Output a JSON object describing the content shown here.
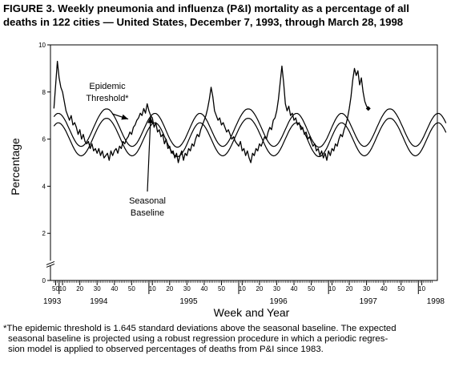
{
  "figure": {
    "title_lines": [
      "FIGURE 3. Weekly pneumonia and influenza (P&I) mortality as a percentage of all",
      "deaths in 122 cities — United States, December 7, 1993, through March 28, 1998"
    ],
    "footnote_lines": [
      "*The epidemic threshold is 1.645 standard deviations above the seasonal baseline. The expected",
      "seasonal baseline is projected using a robust regression procedure in which a periodic regres-",
      "sion model is applied to observed percentages of deaths from P&I since 1983."
    ]
  },
  "chart_data": {
    "type": "line",
    "title": "Weekly pneumonia and influenza (P&I) mortality as a percentage of all deaths in 122 cities — United States, December 7, 1993, through March 28, 1998",
    "xlabel": "Week and Year",
    "ylabel": "Percentage",
    "ylim": [
      0,
      10
    ],
    "y_ticks": [
      0,
      2,
      4,
      6,
      8,
      10
    ],
    "y_axis_break": true,
    "grid": false,
    "legend": "none",
    "x_unit": "week index from first plotted week (week 49, 1993)",
    "week_ticks": [
      {
        "x": 1,
        "label": "50"
      },
      {
        "x": 5,
        "label": "10"
      },
      {
        "x": 15,
        "label": "20"
      },
      {
        "x": 25,
        "label": "30"
      },
      {
        "x": 35,
        "label": "40"
      },
      {
        "x": 45,
        "label": "50"
      },
      {
        "x": 57,
        "label": "10"
      },
      {
        "x": 67,
        "label": "20"
      },
      {
        "x": 77,
        "label": "30"
      },
      {
        "x": 87,
        "label": "40"
      },
      {
        "x": 97,
        "label": "50"
      },
      {
        "x": 109,
        "label": "10"
      },
      {
        "x": 119,
        "label": "20"
      },
      {
        "x": 129,
        "label": "30"
      },
      {
        "x": 139,
        "label": "40"
      },
      {
        "x": 149,
        "label": "50"
      },
      {
        "x": 161,
        "label": "10"
      },
      {
        "x": 171,
        "label": "20"
      },
      {
        "x": 181,
        "label": "30"
      },
      {
        "x": 191,
        "label": "40"
      },
      {
        "x": 201,
        "label": "50"
      },
      {
        "x": 213,
        "label": "10"
      }
    ],
    "year_labels": [
      {
        "x": -1,
        "label": "1993"
      },
      {
        "x": 26,
        "label": "1994"
      },
      {
        "x": 78,
        "label": "1995"
      },
      {
        "x": 130,
        "label": "1996"
      },
      {
        "x": 182,
        "label": "1997"
      },
      {
        "x": 221,
        "label": "1998"
      }
    ],
    "year_boundaries": [
      3,
      55,
      107,
      159,
      211
    ],
    "annotations": [
      {
        "text_lines": [
          "Epidemic",
          "Threshold*"
        ],
        "arrow_to": {
          "x": 43,
          "y": 6.85
        }
      },
      {
        "text_lines": [
          "Seasonal",
          "Baseline"
        ],
        "arrow_to": {
          "x": 56,
          "y": 6.95
        }
      }
    ],
    "series": [
      {
        "name": "Observed percentage of deaths from P&I",
        "x_start": 0,
        "values": [
          7.3,
          8.3,
          9.3,
          8.6,
          8.2,
          8.0,
          7.6,
          7.2,
          7.0,
          6.8,
          7.0,
          6.6,
          6.7,
          6.5,
          6.2,
          6.4,
          6.0,
          6.2,
          5.9,
          5.8,
          5.9,
          5.6,
          5.8,
          5.5,
          5.6,
          5.4,
          5.6,
          5.3,
          5.5,
          5.2,
          5.3,
          5.4,
          5.1,
          5.5,
          5.3,
          5.5,
          5.6,
          5.4,
          5.7,
          5.6,
          5.9,
          5.8,
          6.0,
          6.1,
          6.3,
          6.2,
          6.5,
          6.6,
          6.8,
          6.9,
          7.1,
          7.0,
          7.3,
          7.1,
          7.5,
          7.2,
          7.0,
          6.9,
          6.5,
          6.7,
          6.3,
          6.4,
          6.1,
          6.2,
          5.8,
          6.0,
          5.6,
          5.7,
          5.4,
          5.5,
          5.2,
          5.4,
          5.0,
          5.3,
          5.5,
          5.1,
          5.4,
          5.3,
          5.6,
          5.5,
          5.8,
          5.7,
          6.0,
          6.2,
          6.1,
          6.4,
          6.6,
          6.8,
          7.0,
          7.3,
          7.7,
          8.2,
          7.8,
          7.2,
          7.0,
          6.8,
          6.9,
          6.6,
          6.7,
          6.5,
          6.3,
          6.4,
          6.2,
          6.0,
          6.1,
          5.9,
          5.8,
          5.7,
          5.9,
          5.5,
          5.6,
          5.3,
          5.5,
          5.2,
          5.0,
          5.4,
          5.3,
          5.6,
          5.5,
          5.8,
          5.7,
          5.9,
          6.1,
          6.0,
          6.3,
          6.5,
          6.4,
          6.8,
          6.9,
          7.2,
          7.7,
          8.4,
          9.1,
          8.4,
          7.5,
          7.2,
          7.4,
          7.0,
          7.1,
          6.8,
          6.9,
          6.6,
          6.7,
          6.4,
          6.5,
          6.2,
          6.3,
          6.0,
          6.1,
          5.9,
          5.7,
          5.8,
          5.5,
          5.6,
          5.3,
          5.5,
          5.2,
          5.4,
          5.1,
          5.5,
          5.3,
          5.6,
          5.5,
          5.8,
          5.7,
          6.0,
          6.2,
          6.1,
          6.4,
          6.6,
          6.9,
          7.3,
          7.8,
          8.5,
          9.0,
          8.7,
          8.9,
          8.3,
          8.6,
          8.0,
          7.6,
          7.4,
          7.3
        ]
      },
      {
        "name": "Epidemic threshold",
        "x_start": 0,
        "values": [
          6.95,
          7.04,
          7.09,
          7.09,
          7.05,
          6.97,
          6.86,
          6.73,
          6.57,
          6.41,
          6.25,
          6.09,
          5.95,
          5.83,
          5.75,
          5.7,
          5.69,
          5.72,
          5.79,
          5.89,
          6.02,
          6.17,
          6.33,
          6.5,
          6.66,
          6.82,
          6.96,
          7.08,
          7.18,
          7.25,
          7.28,
          7.28,
          7.25,
          7.18,
          7.08,
          6.96,
          6.82,
          6.66,
          6.5,
          6.33,
          6.17,
          6.02,
          5.89,
          5.79,
          5.72,
          5.69,
          5.7,
          5.75,
          5.83,
          5.95,
          6.09,
          6.25,
          6.41,
          6.57,
          6.73,
          6.86,
          6.97,
          7.05,
          7.09,
          7.09,
          7.04,
          6.95,
          6.83,
          6.68,
          6.52,
          6.35,
          6.18,
          6.02,
          5.89,
          5.78,
          5.7,
          5.66,
          5.66,
          5.7,
          5.78,
          5.89,
          6.02,
          6.18,
          6.35,
          6.52,
          6.68,
          6.83,
          6.95,
          7.04,
          7.09,
          7.09,
          7.05,
          6.97,
          6.86,
          6.73,
          6.57,
          6.41,
          6.25,
          6.09,
          5.95,
          5.83,
          5.75,
          5.7,
          5.69,
          5.72,
          5.79,
          5.89,
          6.02,
          6.17,
          6.33,
          6.5,
          6.66,
          6.82,
          6.96,
          7.08,
          7.18,
          7.25,
          7.28,
          7.28,
          7.25,
          7.18,
          7.08,
          6.96,
          6.82,
          6.66,
          6.5,
          6.33,
          6.17,
          6.02,
          5.89,
          5.79,
          5.72,
          5.69,
          5.7,
          5.75,
          5.83,
          5.95,
          6.09,
          6.25,
          6.41,
          6.57,
          6.73,
          6.86,
          6.97,
          7.05,
          7.09,
          7.09,
          7.04,
          6.95,
          6.83,
          6.68,
          6.52,
          6.35,
          6.18,
          6.02,
          5.89,
          5.78,
          5.7,
          5.66,
          5.66,
          5.7,
          5.78,
          5.89,
          6.02,
          6.18,
          6.35,
          6.52,
          6.68,
          6.83,
          6.95,
          7.04,
          7.09,
          7.09,
          7.05,
          6.97,
          6.86,
          6.73,
          6.57,
          6.41,
          6.25,
          6.09,
          5.95,
          5.83,
          5.75,
          5.7,
          5.69,
          5.72,
          5.79,
          5.89,
          6.02,
          6.17,
          6.33,
          6.5,
          6.66,
          6.82,
          6.96,
          7.08,
          7.18,
          7.25,
          7.28,
          7.28,
          7.25,
          7.18,
          7.08,
          6.96,
          6.82,
          6.66,
          6.5,
          6.33,
          6.17,
          6.02,
          5.89,
          5.79,
          5.72,
          5.69,
          5.7,
          5.75,
          5.83,
          5.95,
          6.09,
          6.25,
          6.41,
          6.57,
          6.73,
          6.86,
          6.97,
          7.05,
          7.09,
          7.09,
          7.04,
          6.95,
          6.83,
          6.68
        ]
      },
      {
        "name": "Seasonal baseline",
        "x_start": 0,
        "values": [
          6.55,
          6.64,
          6.69,
          6.69,
          6.65,
          6.57,
          6.46,
          6.33,
          6.17,
          6.01,
          5.85,
          5.69,
          5.55,
          5.43,
          5.35,
          5.3,
          5.29,
          5.32,
          5.39,
          5.49,
          5.62,
          5.77,
          5.93,
          6.1,
          6.26,
          6.42,
          6.56,
          6.68,
          6.78,
          6.85,
          6.88,
          6.88,
          6.85,
          6.78,
          6.68,
          6.56,
          6.42,
          6.26,
          6.1,
          5.93,
          5.77,
          5.62,
          5.49,
          5.39,
          5.32,
          5.29,
          5.3,
          5.35,
          5.43,
          5.55,
          5.69,
          5.85,
          6.01,
          6.17,
          6.33,
          6.46,
          6.57,
          6.65,
          6.69,
          6.69,
          6.64,
          6.55,
          6.43,
          6.28,
          6.12,
          5.95,
          5.78,
          5.62,
          5.49,
          5.38,
          5.3,
          5.26,
          5.26,
          5.3,
          5.38,
          5.49,
          5.62,
          5.78,
          5.95,
          6.12,
          6.28,
          6.43,
          6.55,
          6.64,
          6.69,
          6.69,
          6.65,
          6.57,
          6.46,
          6.33,
          6.17,
          6.01,
          5.85,
          5.69,
          5.55,
          5.43,
          5.35,
          5.3,
          5.29,
          5.32,
          5.39,
          5.49,
          5.62,
          5.77,
          5.93,
          6.1,
          6.26,
          6.42,
          6.56,
          6.68,
          6.78,
          6.85,
          6.88,
          6.88,
          6.85,
          6.78,
          6.68,
          6.56,
          6.42,
          6.26,
          6.1,
          5.93,
          5.77,
          5.62,
          5.49,
          5.39,
          5.32,
          5.29,
          5.3,
          5.35,
          5.43,
          5.55,
          5.69,
          5.85,
          6.01,
          6.17,
          6.33,
          6.46,
          6.57,
          6.65,
          6.69,
          6.69,
          6.64,
          6.55,
          6.43,
          6.28,
          6.12,
          5.95,
          5.78,
          5.62,
          5.49,
          5.38,
          5.3,
          5.26,
          5.26,
          5.3,
          5.38,
          5.49,
          5.62,
          5.78,
          5.95,
          6.12,
          6.28,
          6.43,
          6.55,
          6.64,
          6.69,
          6.69,
          6.65,
          6.57,
          6.46,
          6.33,
          6.17,
          6.01,
          5.85,
          5.69,
          5.55,
          5.43,
          5.35,
          5.3,
          5.29,
          5.32,
          5.39,
          5.49,
          5.62,
          5.77,
          5.93,
          6.1,
          6.26,
          6.42,
          6.56,
          6.68,
          6.78,
          6.85,
          6.88,
          6.88,
          6.85,
          6.78,
          6.68,
          6.56,
          6.42,
          6.26,
          6.1,
          5.93,
          5.77,
          5.62,
          5.49,
          5.39,
          5.32,
          5.29,
          5.3,
          5.35,
          5.43,
          5.55,
          5.69,
          5.85,
          6.01,
          6.17,
          6.33,
          6.46,
          6.57,
          6.65,
          6.69,
          6.69,
          6.64,
          6.55,
          6.43,
          6.28
        ]
      }
    ],
    "colors": {
      "line": "#000000",
      "background": "#ffffff"
    }
  }
}
